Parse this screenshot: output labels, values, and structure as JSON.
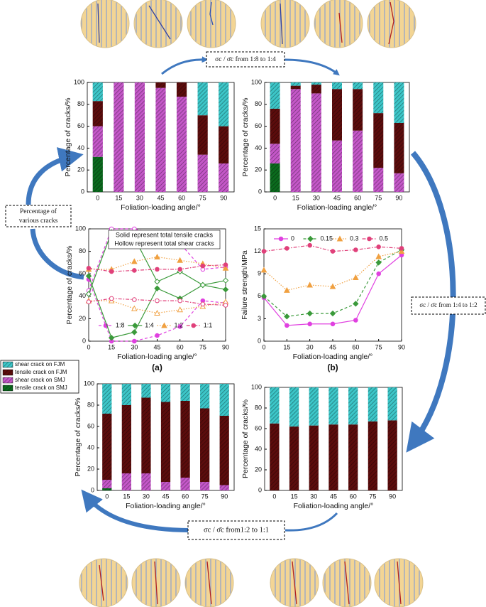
{
  "figure": {
    "ratio_labels": [
      "σc / σ̄c from 1:8 to 1:4",
      "σc / σ̄c from 1:4 to 1:2",
      "σc / σ̄c from1:2 to 1:1"
    ],
    "side_label": [
      "Percentage of",
      "various cracks"
    ]
  },
  "chart_data": [
    {
      "type": "stacked_bar",
      "xlabel": "Foliation-loading angle/°",
      "ylabel": "Percentage of cracks/%",
      "categories": [
        "0",
        "15",
        "30",
        "45",
        "60",
        "75",
        "90"
      ],
      "ylim": [
        0,
        100
      ],
      "yticks": [
        0,
        20,
        40,
        60,
        80,
        100
      ],
      "series": [
        {
          "name": "tensile crack on SMJ",
          "color": "#0b6b1e",
          "values": [
            32,
            0,
            0,
            0,
            0,
            0,
            0
          ]
        },
        {
          "name": "shear crack on SMJ",
          "color": "#c457c8",
          "values": [
            28,
            100,
            100,
            95,
            87,
            34,
            26
          ]
        },
        {
          "name": "tensile crack on FJM",
          "color": "#5c0c0c",
          "values": [
            23,
            0,
            0,
            5,
            13,
            36,
            34
          ]
        },
        {
          "name": "shear crack on FJM",
          "color": "#3cc6c8",
          "values": [
            17,
            0,
            0,
            0,
            0,
            30,
            40
          ]
        }
      ]
    },
    {
      "type": "stacked_bar",
      "xlabel": "Foliation-loading angle/°",
      "ylabel": "Percentage of cracks/%",
      "categories": [
        "0",
        "15",
        "30",
        "45",
        "60",
        "75",
        "90"
      ],
      "ylim": [
        0,
        100
      ],
      "yticks": [
        0,
        20,
        40,
        60,
        80,
        100
      ],
      "series": [
        {
          "values": [
            26,
            0,
            0,
            0,
            0,
            0,
            0
          ]
        },
        {
          "values": [
            18,
            94,
            90,
            47,
            56,
            22,
            17
          ]
        },
        {
          "values": [
            32,
            3,
            8,
            47,
            38,
            50,
            46
          ]
        },
        {
          "values": [
            24,
            3,
            2,
            6,
            6,
            28,
            37
          ]
        }
      ]
    },
    {
      "type": "stacked_bar",
      "xlabel": "Foliation-loading angle/°",
      "ylabel": "Percentage of cracks/%",
      "categories": [
        "0",
        "15",
        "30",
        "45",
        "60",
        "75",
        "90"
      ],
      "ylim": [
        0,
        100
      ],
      "yticks": [
        0,
        20,
        40,
        60,
        80,
        100
      ],
      "series": [
        {
          "values": [
            2,
            0,
            0,
            0,
            0,
            0,
            0
          ]
        },
        {
          "values": [
            8,
            16,
            16,
            8,
            12,
            8,
            5
          ]
        },
        {
          "values": [
            62,
            64,
            71,
            75,
            72,
            69,
            65
          ]
        },
        {
          "values": [
            28,
            20,
            13,
            17,
            16,
            23,
            30
          ]
        }
      ]
    },
    {
      "type": "stacked_bar",
      "xlabel": "Foliation-loading angle/°",
      "ylabel": "Percentage of cracks/%",
      "categories": [
        "0",
        "15",
        "30",
        "45",
        "60",
        "75",
        "90"
      ],
      "ylim": [
        0,
        100
      ],
      "yticks": [
        0,
        20,
        40,
        60,
        80,
        100
      ],
      "series": [
        {
          "values": [
            0,
            0,
            0,
            0,
            0,
            0,
            0
          ]
        },
        {
          "values": [
            0,
            0,
            0,
            0,
            0,
            0,
            0
          ]
        },
        {
          "values": [
            65,
            62,
            63,
            64,
            64,
            67,
            68
          ]
        },
        {
          "values": [
            35,
            38,
            37,
            36,
            36,
            33,
            32
          ]
        }
      ]
    },
    {
      "type": "line",
      "label": "(a)",
      "xlabel": "Foliation-loading angle/°",
      "ylabel": "Percentage of cracks/%",
      "annotations": [
        "Solid represent total tensile cracks",
        "Hollow represent total shear cracks"
      ],
      "x": [
        0,
        15,
        30,
        45,
        60,
        75,
        90
      ],
      "xlim": [
        0,
        90
      ],
      "xticks": [
        0,
        15,
        30,
        45,
        60,
        75,
        90
      ],
      "ylim": [
        0,
        100
      ],
      "yticks": [
        0,
        20,
        40,
        60,
        80,
        100
      ],
      "legend": "bottom",
      "series": [
        {
          "name": "1:8",
          "color": "#e040e0",
          "linestyle": "dashed",
          "marker": "circle",
          "values": [
            55,
            0,
            0,
            5,
            13,
            36,
            34
          ],
          "hollow_values": [
            45,
            100,
            100,
            95,
            87,
            64,
            66
          ]
        },
        {
          "name": "1:4",
          "color": "#3a9a3a",
          "linestyle": "solid",
          "marker": "diamond",
          "values": [
            58,
            3,
            8,
            47,
            38,
            50,
            46
          ],
          "hollow_values": [
            42,
            97,
            92,
            53,
            62,
            50,
            54
          ]
        },
        {
          "name": "1:2",
          "color": "#f0a040",
          "linestyle": "dotted",
          "marker": "triangle",
          "values": [
            64,
            64,
            71,
            75,
            72,
            69,
            65
          ],
          "hollow_values": [
            36,
            36,
            29,
            25,
            28,
            31,
            35
          ]
        },
        {
          "name": "1:1",
          "color": "#e0407a",
          "linestyle": "dashdot",
          "marker": "circle",
          "values": [
            65,
            62,
            63,
            64,
            64,
            67,
            68
          ],
          "hollow_values": [
            35,
            38,
            37,
            36,
            36,
            33,
            32
          ]
        }
      ]
    },
    {
      "type": "line",
      "label": "(b)",
      "xlabel": "Foliation-loading angle/°",
      "ylabel": "Failure strength/MPa",
      "x": [
        0,
        15,
        30,
        45,
        60,
        75,
        90
      ],
      "xlim": [
        0,
        90
      ],
      "xticks": [
        0,
        15,
        30,
        45,
        60,
        75,
        90
      ],
      "ylim": [
        0,
        15
      ],
      "yticks": [
        0,
        3,
        6,
        9,
        12,
        15
      ],
      "legend": "top",
      "series": [
        {
          "name": "0",
          "color": "#e040e0",
          "linestyle": "solid",
          "marker": "circle",
          "values": [
            5.8,
            2.1,
            2.3,
            2.3,
            2.8,
            9,
            11.5
          ]
        },
        {
          "name": "0.15",
          "color": "#3a9a3a",
          "linestyle": "dashed",
          "marker": "diamond",
          "values": [
            6,
            3.3,
            3.7,
            3.7,
            5,
            10.5,
            12.2
          ]
        },
        {
          "name": "0.3",
          "color": "#f0a040",
          "linestyle": "dotted",
          "marker": "triangle",
          "values": [
            9.5,
            6.8,
            7.5,
            7.3,
            8.5,
            11.3,
            12
          ]
        },
        {
          "name": "0.5",
          "color": "#e0407a",
          "linestyle": "dashdot",
          "marker": "circle",
          "values": [
            12,
            12.4,
            12.8,
            12,
            12.2,
            12.6,
            12.4
          ]
        }
      ]
    }
  ]
}
